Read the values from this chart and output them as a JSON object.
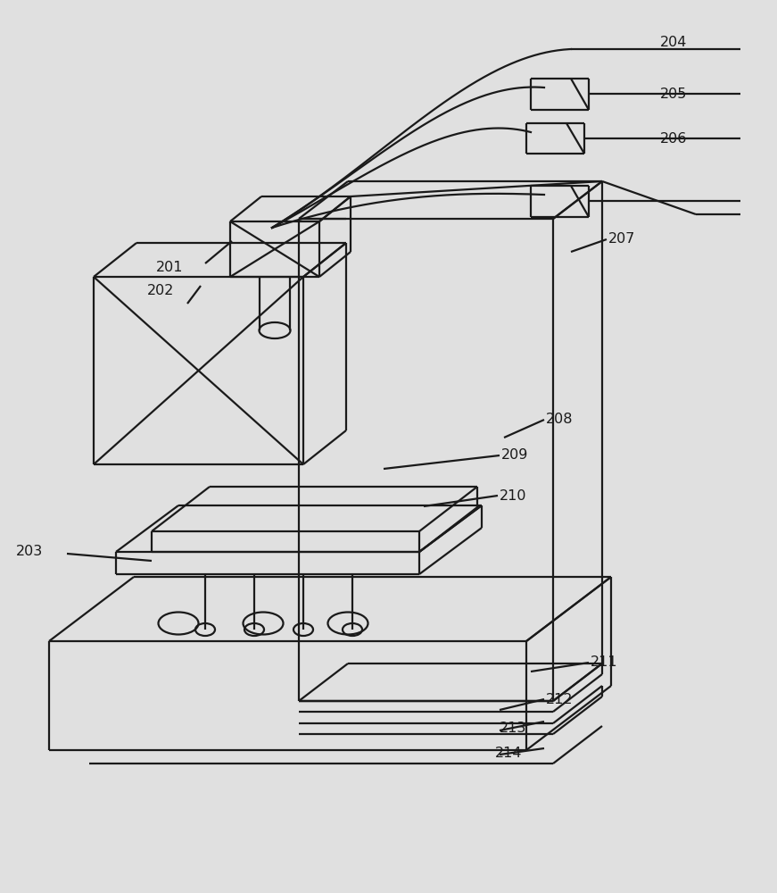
{
  "bg_color": "#e0e0e0",
  "line_color": "#1a1a1a",
  "line_width": 1.6,
  "font_size": 11.5
}
